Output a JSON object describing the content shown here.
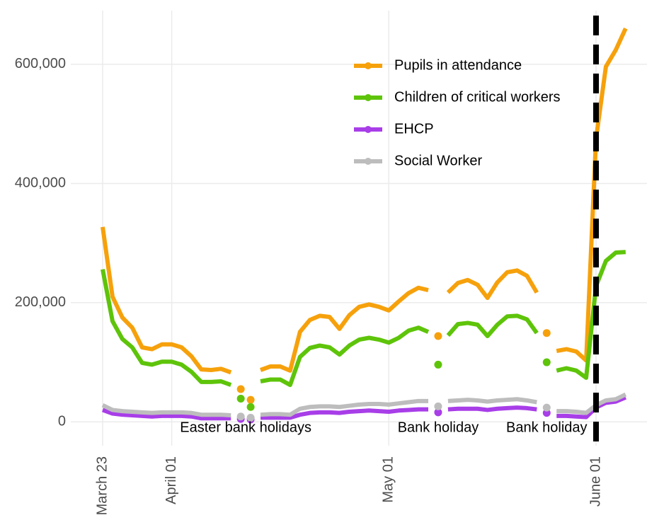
{
  "chart_data": {
    "type": "line",
    "categories": [
      "March 23",
      null,
      null,
      null,
      null,
      null,
      null,
      "April 01",
      null,
      null,
      null,
      null,
      null,
      null,
      null,
      null,
      null,
      null,
      null,
      null,
      null,
      null,
      null,
      null,
      null,
      null,
      null,
      null,
      null,
      "May 01",
      null,
      null,
      null,
      null,
      null,
      null,
      null,
      null,
      null,
      null,
      null,
      null,
      null,
      null,
      null,
      null,
      null,
      null,
      null,
      null,
      "June 01",
      null,
      null,
      null
    ],
    "series": [
      {
        "name": "Pupils in attendance",
        "color": "#f6a10c",
        "values": [
          327000,
          210000,
          175000,
          158000,
          125000,
          122000,
          130000,
          130000,
          125000,
          110000,
          88000,
          87000,
          89000,
          83000,
          null,
          null,
          87000,
          93000,
          93000,
          86000,
          151000,
          171000,
          178000,
          176000,
          156000,
          179000,
          193000,
          197000,
          193000,
          187000,
          202000,
          216000,
          225000,
          221000,
          null,
          217000,
          233000,
          238000,
          230000,
          208000,
          234000,
          251000,
          254000,
          245000,
          217000,
          null,
          119000,
          122000,
          118000,
          103000,
          475000,
          596000,
          624000,
          660000
        ],
        "holiday_values": [
          null,
          null,
          null,
          null,
          null,
          null,
          null,
          null,
          null,
          null,
          null,
          null,
          null,
          null,
          55000,
          37000,
          null,
          null,
          null,
          null,
          null,
          null,
          null,
          null,
          null,
          null,
          null,
          null,
          null,
          null,
          null,
          null,
          null,
          null,
          144000,
          null,
          null,
          null,
          null,
          null,
          null,
          null,
          null,
          null,
          null,
          149000,
          null,
          null,
          null,
          null,
          null,
          null,
          null,
          null
        ]
      },
      {
        "name": "Children of critical workers",
        "color": "#5ec40a",
        "values": [
          256000,
          169000,
          139000,
          125000,
          99000,
          96000,
          101000,
          101000,
          96000,
          84000,
          67000,
          67000,
          68000,
          62000,
          null,
          null,
          68000,
          71000,
          71000,
          62000,
          109000,
          124000,
          128000,
          125000,
          113000,
          128000,
          138000,
          141000,
          138000,
          133000,
          141000,
          153000,
          158000,
          151000,
          null,
          145000,
          164000,
          166000,
          163000,
          144000,
          163000,
          177000,
          178000,
          172000,
          149000,
          null,
          86000,
          90000,
          86000,
          74000,
          228000,
          270000,
          284000,
          285000
        ],
        "holiday_values": [
          null,
          null,
          null,
          null,
          null,
          null,
          null,
          null,
          null,
          null,
          null,
          null,
          null,
          null,
          39000,
          25000,
          null,
          null,
          null,
          null,
          null,
          null,
          null,
          null,
          null,
          null,
          null,
          null,
          null,
          null,
          null,
          null,
          null,
          null,
          96000,
          null,
          null,
          null,
          null,
          null,
          null,
          null,
          null,
          null,
          null,
          100000,
          null,
          null,
          null,
          null,
          null,
          null,
          null,
          null
        ]
      },
      {
        "name": "EHCP",
        "color": "#a83ee8",
        "values": [
          20000,
          14000,
          12000,
          11000,
          10000,
          9000,
          10000,
          10000,
          10000,
          9000,
          6000,
          6000,
          6000,
          6000,
          null,
          null,
          7000,
          7000,
          7000,
          7000,
          12000,
          15000,
          16000,
          16000,
          15000,
          17000,
          18000,
          19000,
          18000,
          17000,
          19000,
          20000,
          21000,
          21000,
          null,
          21000,
          22000,
          22000,
          22000,
          20000,
          22000,
          23000,
          24000,
          23000,
          21000,
          null,
          10000,
          10000,
          9000,
          8000,
          24000,
          32000,
          34000,
          41000
        ],
        "holiday_values": [
          null,
          null,
          null,
          null,
          null,
          null,
          null,
          null,
          null,
          null,
          null,
          null,
          null,
          null,
          5000,
          4000,
          null,
          null,
          null,
          null,
          null,
          null,
          null,
          null,
          null,
          null,
          null,
          null,
          null,
          null,
          null,
          null,
          null,
          null,
          16000,
          null,
          null,
          null,
          null,
          null,
          null,
          null,
          null,
          null,
          null,
          15000,
          null,
          null,
          null,
          null,
          null,
          null,
          null,
          null
        ]
      },
      {
        "name": "Social Worker",
        "color": "#bdbdbd",
        "values": [
          28000,
          20000,
          18000,
          17000,
          16000,
          15000,
          16000,
          16000,
          16000,
          15000,
          12000,
          12000,
          12000,
          11000,
          null,
          null,
          12000,
          13000,
          13000,
          12000,
          22000,
          25000,
          26000,
          26000,
          25000,
          27000,
          29000,
          30000,
          30000,
          29000,
          31000,
          33000,
          35000,
          35000,
          null,
          35000,
          36000,
          37000,
          36000,
          34000,
          36000,
          37000,
          38000,
          36000,
          33000,
          null,
          18000,
          18000,
          17000,
          15000,
          28000,
          36000,
          38000,
          46000
        ],
        "holiday_values": [
          null,
          null,
          null,
          null,
          null,
          null,
          null,
          null,
          null,
          null,
          null,
          null,
          null,
          null,
          9000,
          7000,
          null,
          null,
          null,
          null,
          null,
          null,
          null,
          null,
          null,
          null,
          null,
          null,
          null,
          null,
          null,
          null,
          null,
          null,
          26000,
          null,
          null,
          null,
          null,
          null,
          null,
          null,
          null,
          null,
          null,
          24000,
          null,
          null,
          null,
          null,
          null,
          null,
          null,
          null
        ]
      }
    ],
    "annotations": [
      "Easter bank holidays",
      "Bank holiday",
      "Bank holiday"
    ],
    "vline": "June 01",
    "ylim": [
      -40000,
      690000
    ],
    "yticks": [
      0,
      {
        "value": 200000,
        "label": "200,000"
      },
      {
        "value": 400000,
        "label": "400,000"
      },
      {
        "value": 600000,
        "label": "600,000"
      }
    ],
    "grid": true,
    "legend": "top-right"
  }
}
